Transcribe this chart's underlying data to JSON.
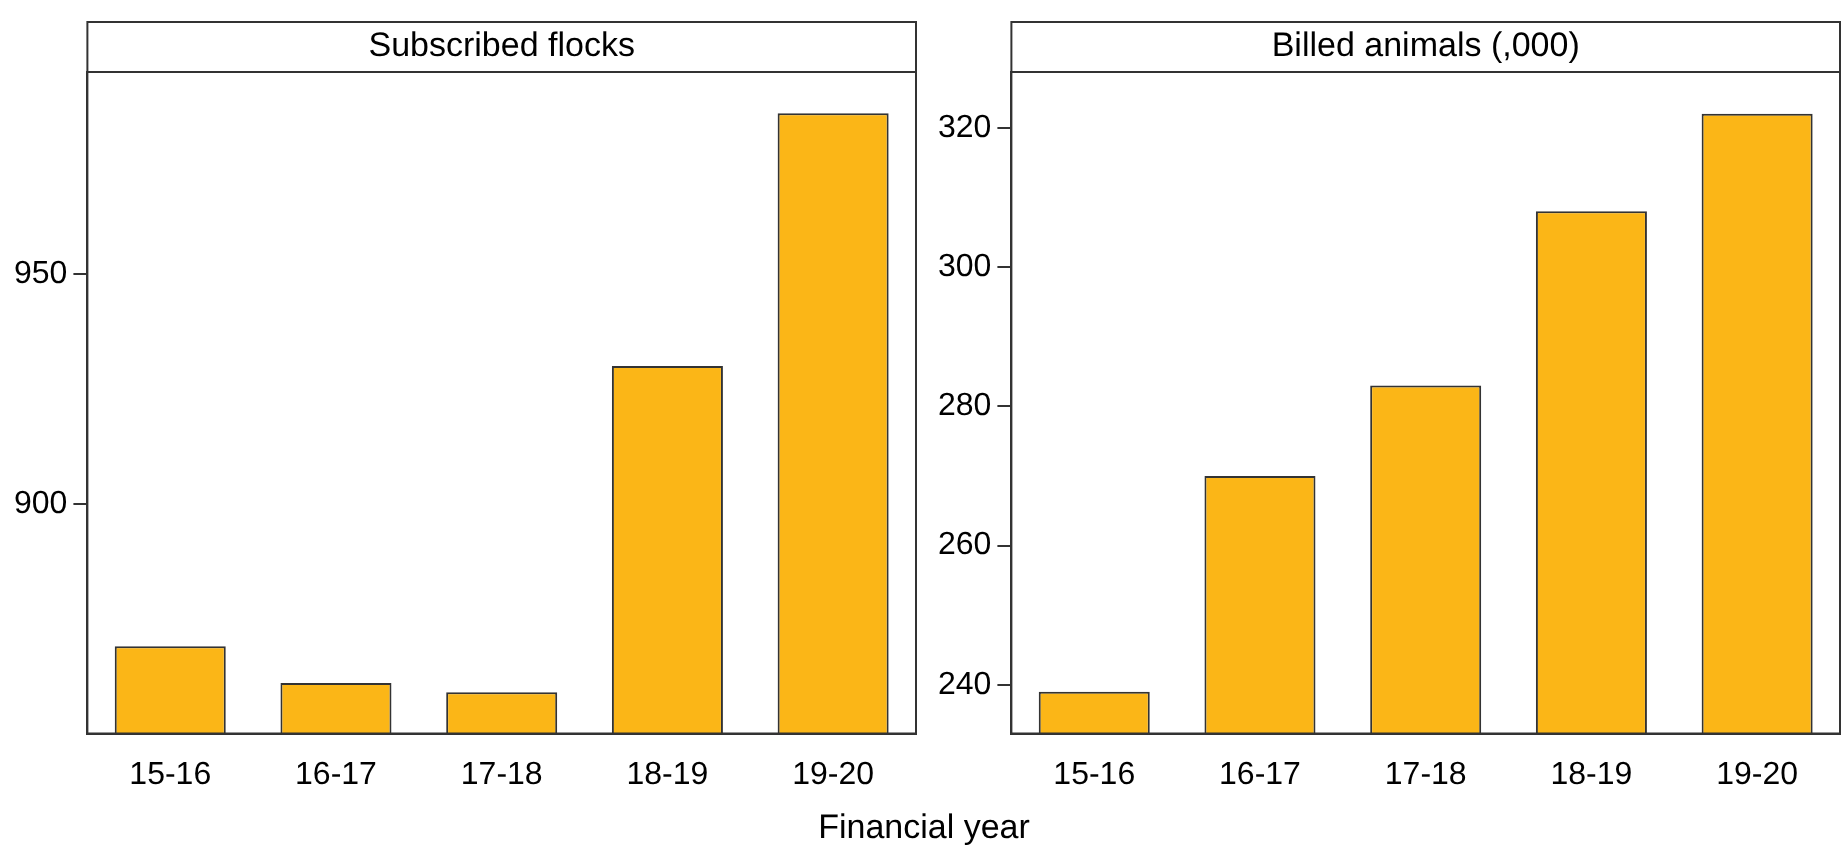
{
  "chart_data": [
    {
      "type": "bar",
      "title": "Subscribed flocks",
      "xlabel": "Financial year",
      "categories": [
        "15-16",
        "16-17",
        "17-18",
        "18-19",
        "19-20"
      ],
      "values": [
        869,
        861,
        859,
        930,
        985
      ],
      "color": "#fbb617",
      "ylim": [
        850,
        994
      ],
      "yticks": [
        900,
        950
      ],
      "grid": false,
      "legend": false
    },
    {
      "type": "bar",
      "title": "Billed animals (,000)",
      "categories": [
        "15-16",
        "16-17",
        "17-18",
        "18-19",
        "19-20"
      ],
      "values": [
        239,
        270,
        283,
        308,
        322
      ],
      "color": "#fbb617",
      "ylim": [
        233,
        328
      ],
      "yticks": [
        240,
        260,
        280,
        300,
        320
      ],
      "grid": false,
      "legend": false
    }
  ]
}
